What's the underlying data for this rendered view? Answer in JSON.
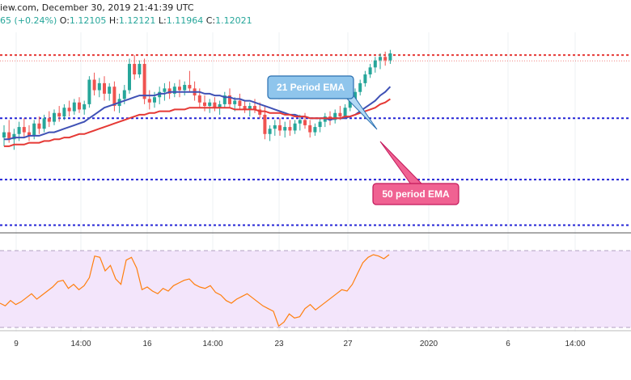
{
  "header": {
    "source_date": "iew.com, December 30, 2019 21:41:39 UTC",
    "change": "65 (+0.24%)",
    "o_label": "O:",
    "o_value": "1.12105",
    "h_label": "H:",
    "h_value": "1.12121",
    "l_label": "L:",
    "l_value": "1.11964",
    "c_label": "C:",
    "c_value": "1.12021"
  },
  "colors": {
    "bull": "#26a69a",
    "bear": "#ef5350",
    "ema21": "#3f51b5",
    "ema50": "#e53935",
    "rsi": "#ff7f0e",
    "resistance": "#e53935",
    "support": "#2424d6",
    "rsi_bg": "#f3e5fb"
  },
  "chart_data": [
    {
      "type": "candlestick",
      "title": "",
      "x_tick_labels": [
        "9",
        "14:00",
        "16",
        "14:00",
        "23",
        "27",
        "2020",
        "6",
        "14:00"
      ],
      "horizontal_levels": [
        {
          "kind": "resistance",
          "value": 1.1212
        },
        {
          "kind": "support",
          "value": 1.1176
        },
        {
          "kind": "support",
          "value": 1.1141
        },
        {
          "kind": "support",
          "value": 1.1115
        }
      ],
      "ohlc": [
        [
          1.1165,
          1.1172,
          1.116,
          1.1168
        ],
        [
          1.1168,
          1.1175,
          1.1162,
          1.1164
        ],
        [
          1.1164,
          1.117,
          1.1158,
          1.1167
        ],
        [
          1.1167,
          1.1174,
          1.1163,
          1.1171
        ],
        [
          1.1171,
          1.1176,
          1.1165,
          1.1168
        ],
        [
          1.1168,
          1.1172,
          1.1163,
          1.1166
        ],
        [
          1.1166,
          1.1175,
          1.1164,
          1.1173
        ],
        [
          1.1173,
          1.1177,
          1.1167,
          1.117
        ],
        [
          1.117,
          1.1178,
          1.1168,
          1.1176
        ],
        [
          1.1176,
          1.118,
          1.1171,
          1.1174
        ],
        [
          1.1174,
          1.1181,
          1.1172,
          1.1179
        ],
        [
          1.1179,
          1.1183,
          1.1174,
          1.1177
        ],
        [
          1.1177,
          1.1184,
          1.1175,
          1.1182
        ],
        [
          1.1182,
          1.1186,
          1.1177,
          1.118
        ],
        [
          1.118,
          1.1187,
          1.1178,
          1.1185
        ],
        [
          1.1185,
          1.1188,
          1.1179,
          1.1181
        ],
        [
          1.1181,
          1.1186,
          1.1178,
          1.1184
        ],
        [
          1.1184,
          1.12,
          1.1182,
          1.1198
        ],
        [
          1.1198,
          1.1202,
          1.1189,
          1.1192
        ],
        [
          1.1192,
          1.1199,
          1.1188,
          1.1196
        ],
        [
          1.1196,
          1.12,
          1.1186,
          1.119
        ],
        [
          1.119,
          1.1196,
          1.1186,
          1.1194
        ],
        [
          1.1194,
          1.1197,
          1.118,
          1.1183
        ],
        [
          1.1183,
          1.119,
          1.1179,
          1.1187
        ],
        [
          1.1187,
          1.1195,
          1.1184,
          1.1192
        ],
        [
          1.1192,
          1.121,
          1.119,
          1.1207
        ],
        [
          1.1207,
          1.1212,
          1.1198,
          1.1201
        ],
        [
          1.1201,
          1.1209,
          1.1199,
          1.1207
        ],
        [
          1.1207,
          1.121,
          1.1184,
          1.1187
        ],
        [
          1.1187,
          1.1192,
          1.1181,
          1.1185
        ],
        [
          1.1185,
          1.1191,
          1.1182,
          1.1188
        ],
        [
          1.1188,
          1.1194,
          1.1184,
          1.1191
        ],
        [
          1.1191,
          1.1196,
          1.1186,
          1.1193
        ],
        [
          1.1193,
          1.1197,
          1.1187,
          1.119
        ],
        [
          1.119,
          1.1196,
          1.1188,
          1.1194
        ],
        [
          1.1194,
          1.1198,
          1.1188,
          1.1192
        ],
        [
          1.1192,
          1.1197,
          1.1189,
          1.1195
        ],
        [
          1.1195,
          1.1203,
          1.1191,
          1.1193
        ],
        [
          1.1193,
          1.1197,
          1.1186,
          1.1189
        ],
        [
          1.1189,
          1.1193,
          1.1182,
          1.1185
        ],
        [
          1.1185,
          1.1189,
          1.118,
          1.1183
        ],
        [
          1.1183,
          1.1187,
          1.1179,
          1.1185
        ],
        [
          1.1185,
          1.1188,
          1.118,
          1.1182
        ],
        [
          1.1182,
          1.1186,
          1.1178,
          1.1184
        ],
        [
          1.1184,
          1.1191,
          1.1182,
          1.1189
        ],
        [
          1.1189,
          1.1193,
          1.1182,
          1.1184
        ],
        [
          1.1184,
          1.1188,
          1.118,
          1.1186
        ],
        [
          1.1186,
          1.119,
          1.1181,
          1.1183
        ],
        [
          1.1183,
          1.1186,
          1.1179,
          1.1181
        ],
        [
          1.1181,
          1.1185,
          1.1177,
          1.1183
        ],
        [
          1.1183,
          1.1187,
          1.1179,
          1.1181
        ],
        [
          1.1181,
          1.1185,
          1.1176,
          1.1178
        ],
        [
          1.1178,
          1.1183,
          1.1164,
          1.1167
        ],
        [
          1.1167,
          1.1172,
          1.1163,
          1.117
        ],
        [
          1.117,
          1.1175,
          1.1166,
          1.1172
        ],
        [
          1.1172,
          1.1176,
          1.1166,
          1.1169
        ],
        [
          1.1169,
          1.1174,
          1.1165,
          1.1171
        ],
        [
          1.1171,
          1.1175,
          1.1166,
          1.1169
        ],
        [
          1.1169,
          1.1175,
          1.1167,
          1.1173
        ],
        [
          1.1173,
          1.1178,
          1.1169,
          1.1175
        ],
        [
          1.1175,
          1.1179,
          1.117,
          1.1172
        ],
        [
          1.1172,
          1.1175,
          1.1165,
          1.1168
        ],
        [
          1.1168,
          1.1173,
          1.1166,
          1.1171
        ],
        [
          1.1171,
          1.1176,
          1.1168,
          1.1174
        ],
        [
          1.1174,
          1.1179,
          1.1171,
          1.1177
        ],
        [
          1.1177,
          1.118,
          1.1172,
          1.1175
        ],
        [
          1.1175,
          1.1181,
          1.1173,
          1.1179
        ],
        [
          1.1179,
          1.1183,
          1.1175,
          1.1177
        ],
        [
          1.1177,
          1.1184,
          1.1176,
          1.1182
        ],
        [
          1.1182,
          1.1188,
          1.118,
          1.1186
        ],
        [
          1.1186,
          1.1193,
          1.1184,
          1.1191
        ],
        [
          1.1191,
          1.1198,
          1.1189,
          1.1196
        ],
        [
          1.1196,
          1.1203,
          1.1194,
          1.1201
        ],
        [
          1.1201,
          1.1207,
          1.1199,
          1.1205
        ],
        [
          1.1205,
          1.1211,
          1.1202,
          1.1209
        ],
        [
          1.1209,
          1.1213,
          1.1204,
          1.1211
        ],
        [
          1.1211,
          1.1214,
          1.1206,
          1.1209
        ],
        [
          1.1209,
          1.1215,
          1.1207,
          1.1213
        ]
      ],
      "series": [
        {
          "name": "21 Period EMA",
          "values": [
            1.1164,
            1.1164,
            1.1165,
            1.1165,
            1.1165,
            1.1166,
            1.1166,
            1.1166,
            1.1167,
            1.1168,
            1.1168,
            1.1169,
            1.117,
            1.1171,
            1.1172,
            1.1173,
            1.1174,
            1.1176,
            1.1178,
            1.118,
            1.1182,
            1.1183,
            1.1184,
            1.1185,
            1.1186,
            1.1187,
            1.1188,
            1.1189,
            1.1189,
            1.1189,
            1.1189,
            1.119,
            1.119,
            1.1191,
            1.1191,
            1.1191,
            1.1191,
            1.1191,
            1.1191,
            1.1191,
            1.119,
            1.119,
            1.1189,
            1.1189,
            1.1188,
            1.1188,
            1.1187,
            1.1187,
            1.1186,
            1.1186,
            1.1185,
            1.1184,
            1.1183,
            1.1182,
            1.1181,
            1.118,
            1.1179,
            1.1178,
            1.1178,
            1.1177,
            1.1177,
            1.1176,
            1.1176,
            1.1176,
            1.1176,
            1.1175,
            1.1176,
            1.1176,
            1.1176,
            1.1177,
            1.1178,
            1.118,
            1.1182,
            1.1184,
            1.1186,
            1.1189,
            1.1191,
            1.1194
          ]
        },
        {
          "name": "50 period EMA",
          "values": [
            1.116,
            1.116,
            1.1161,
            1.1161,
            1.1161,
            1.1162,
            1.1162,
            1.1162,
            1.1163,
            1.1163,
            1.1164,
            1.1164,
            1.1165,
            1.1165,
            1.1166,
            1.1167,
            1.1167,
            1.1168,
            1.1169,
            1.117,
            1.1171,
            1.1172,
            1.1173,
            1.1174,
            1.1175,
            1.1176,
            1.1177,
            1.1178,
            1.1178,
            1.1179,
            1.1179,
            1.118,
            1.118,
            1.118,
            1.1181,
            1.1181,
            1.1181,
            1.1182,
            1.1182,
            1.1182,
            1.1182,
            1.1182,
            1.1182,
            1.1182,
            1.1182,
            1.1182,
            1.1181,
            1.1181,
            1.1181,
            1.1181,
            1.1181,
            1.118,
            1.118,
            1.1179,
            1.1179,
            1.1179,
            1.1178,
            1.1178,
            1.1177,
            1.1177,
            1.1177,
            1.1176,
            1.1176,
            1.1176,
            1.1176,
            1.1176,
            1.1176,
            1.1176,
            1.1177,
            1.1177,
            1.1178,
            1.1179,
            1.118,
            1.1181,
            1.1182,
            1.1184,
            1.1185,
            1.1187
          ]
        }
      ],
      "annotations": [
        {
          "label": "21 Period EMA",
          "target": "21 Period EMA"
        },
        {
          "label": "50 period EMA",
          "target": "50 period EMA"
        }
      ]
    },
    {
      "type": "line",
      "title": "",
      "ylim": [
        20,
        80
      ],
      "band": [
        30,
        70
      ],
      "series": [
        {
          "name": "",
          "values": [
            38,
            36,
            40,
            37,
            39,
            42,
            45,
            41,
            44,
            47,
            50,
            54,
            55,
            49,
            52,
            48,
            51,
            57,
            73,
            72,
            62,
            66,
            56,
            52,
            70,
            72,
            64,
            48,
            50,
            47,
            45,
            49,
            47,
            51,
            53,
            55,
            56,
            52,
            50,
            49,
            51,
            46,
            44,
            40,
            38,
            41,
            43,
            45,
            42,
            39,
            36,
            34,
            32,
            21,
            24,
            30,
            27,
            28,
            34,
            37,
            33,
            36,
            39,
            42,
            45,
            48,
            47,
            52,
            60,
            68,
            72,
            74,
            73,
            71,
            74
          ]
        }
      ]
    }
  ]
}
